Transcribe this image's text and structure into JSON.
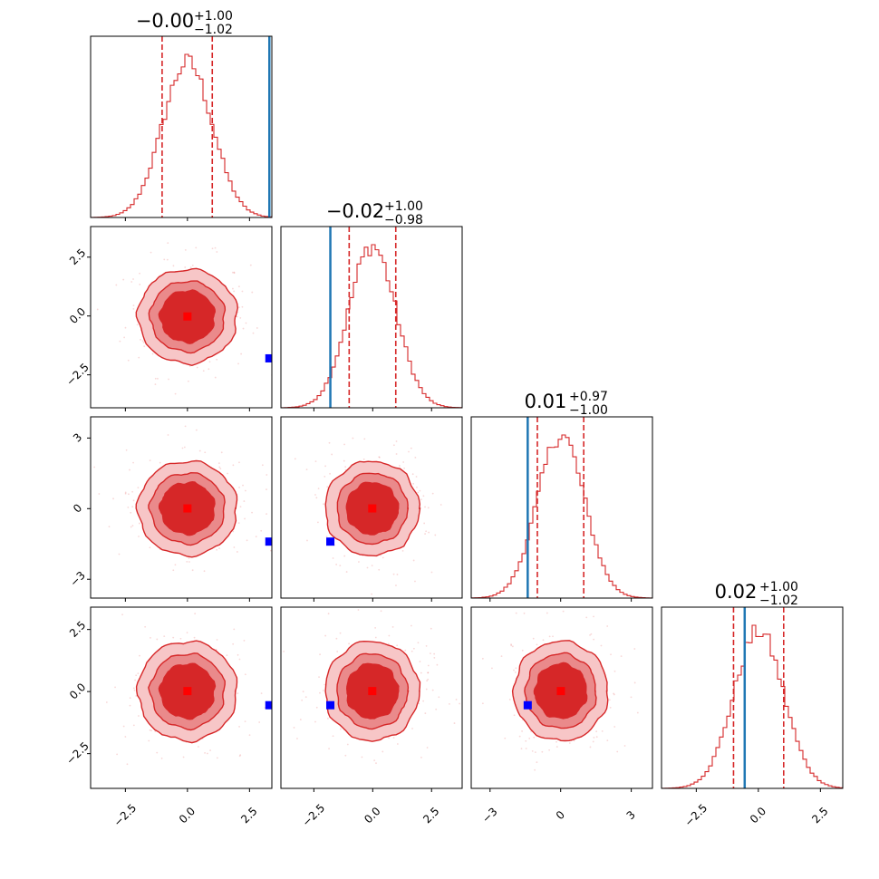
{
  "chart_data": {
    "type": "corner",
    "n_params": 4,
    "colors": {
      "posterior": "#d62728",
      "posterior_fill_outer": "#f7c6c7",
      "posterior_fill_mid": "#ea8a8b",
      "posterior_fill_inner": "#d62728",
      "truth_line": "#1f77b4",
      "truth_marker": "#0000ff",
      "median_marker": "#ff0000"
    },
    "params": [
      {
        "median": -0.0,
        "plus": 1.0,
        "minus": 1.02,
        "median_text": "−0.00",
        "plus_text": "+1.00",
        "minus_text": "−1.02",
        "range": [
          -3.9,
          3.4
        ],
        "truth": 3.3
      },
      {
        "median": -0.02,
        "plus": 1.0,
        "minus": 0.98,
        "median_text": "−0.02",
        "plus_text": "+1.00",
        "minus_text": "−0.98",
        "range": [
          -3.9,
          3.8
        ],
        "truth": -1.8
      },
      {
        "median": 0.01,
        "plus": 0.97,
        "minus": 1.0,
        "median_text": "0.01",
        "plus_text": "+0.97",
        "minus_text": "−1.00",
        "range": [
          -3.8,
          3.9
        ],
        "truth": -1.4
      },
      {
        "median": 0.02,
        "plus": 1.0,
        "minus": 1.02,
        "median_text": "0.02",
        "plus_text": "+1.00",
        "minus_text": "−1.02",
        "range": [
          -3.9,
          3.4
        ],
        "truth": -0.55
      }
    ],
    "ticks": [
      {
        "values": [
          -2.5,
          0.0,
          2.5
        ],
        "labels": [
          "−2.5",
          "0.0",
          "2.5"
        ]
      },
      {
        "values": [
          -2.5,
          0.0,
          2.5
        ],
        "labels": [
          "−2.5",
          "0.0",
          "2.5"
        ]
      },
      {
        "values": [
          -3,
          0,
          3
        ],
        "labels": [
          "−3",
          "0",
          "3"
        ]
      },
      {
        "values": [
          -2.5,
          0.0,
          2.5
        ],
        "labels": [
          "−2.5",
          "0.0",
          "2.5"
        ]
      }
    ],
    "contour_levels_sigma": [
      0.5,
      1.0,
      1.5,
      2.0
    ],
    "histogram_bins": 50
  }
}
